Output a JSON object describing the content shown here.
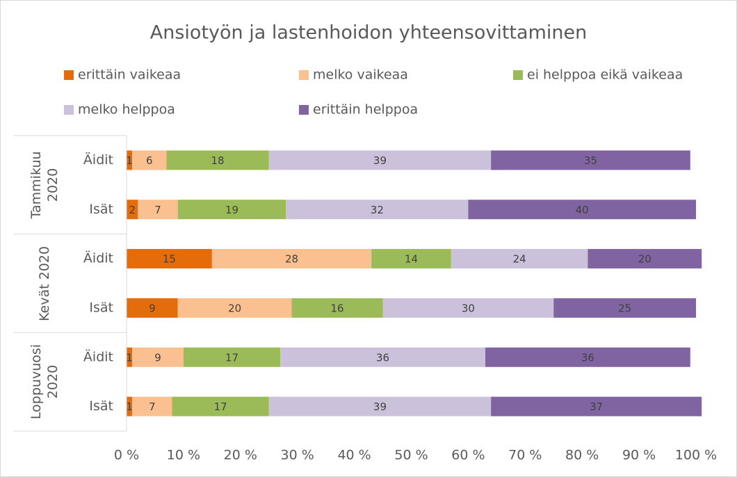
{
  "chart_data": {
    "type": "bar",
    "orientation": "horizontal",
    "stacked": true,
    "title": "Ansiotyön ja lastenhoidon yhteensovittaminen",
    "categories": [
      "Äidit",
      "Isät",
      "Äidit",
      "Isät",
      "Äidit",
      "Isät"
    ],
    "groups": [
      {
        "name": "Tammikuu 2020",
        "size": 2
      },
      {
        "name": "Kevät 2020",
        "size": 2
      },
      {
        "name": "Loppuvuosi 2020",
        "size": 2
      }
    ],
    "series": [
      {
        "name": "erittäin vaikeaa",
        "color": "#e46c0a",
        "values": [
          1,
          2,
          15,
          9,
          1,
          1
        ]
      },
      {
        "name": "melko vaikeaa",
        "color": "#fac090",
        "values": [
          6,
          7,
          28,
          20,
          9,
          7
        ]
      },
      {
        "name": "ei helppoa eikä vaikeaa",
        "color": "#9bbb59",
        "values": [
          18,
          19,
          14,
          16,
          17,
          17
        ]
      },
      {
        "name": "melko helppoa",
        "color": "#ccc1da",
        "values": [
          39,
          32,
          24,
          30,
          36,
          39
        ]
      },
      {
        "name": "erittäin helppoa",
        "color": "#8064a2",
        "values": [
          35,
          40,
          20,
          25,
          36,
          37
        ]
      }
    ],
    "xlim": [
      0,
      100
    ],
    "xticks": [
      {
        "value": 0,
        "label": "0 %"
      },
      {
        "value": 10,
        "label": "10 %"
      },
      {
        "value": 20,
        "label": "20 %"
      },
      {
        "value": 30,
        "label": "30 %"
      },
      {
        "value": 40,
        "label": "40 %"
      },
      {
        "value": 50,
        "label": "50 %"
      },
      {
        "value": 60,
        "label": "60 %"
      },
      {
        "value": 70,
        "label": "70 %"
      },
      {
        "value": 80,
        "label": "80 %"
      },
      {
        "value": 90,
        "label": "90 %"
      },
      {
        "value": 100,
        "label": "100 %"
      }
    ],
    "grid": false,
    "legend": "top"
  }
}
